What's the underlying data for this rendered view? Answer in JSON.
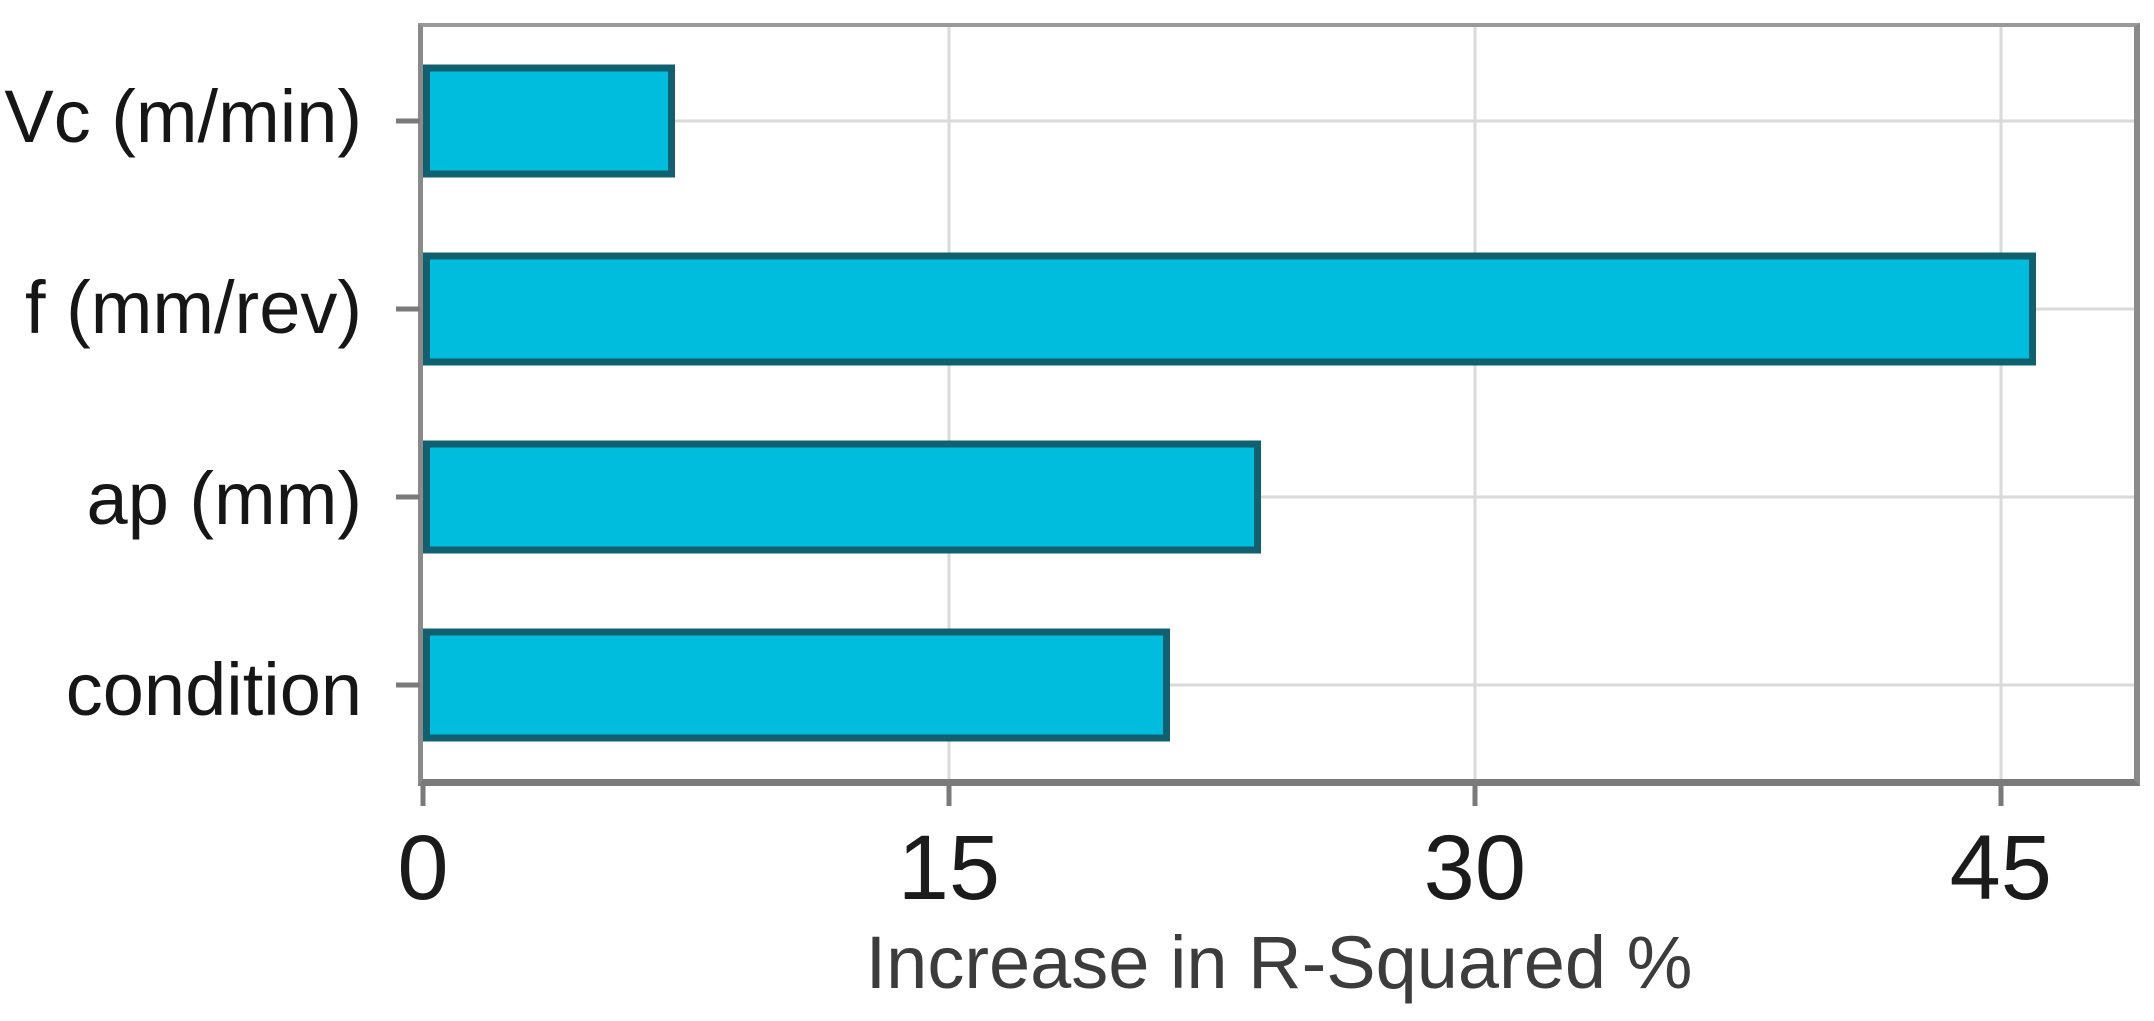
{
  "figure": {
    "background": "#ffffff"
  },
  "chart_data": {
    "type": "bar",
    "orientation": "horizontal",
    "title": "",
    "xlabel": "Increase in R-Squared %",
    "ylabel": "",
    "categories": [
      "Vc (m/min)",
      "f (mm/rev)",
      "ap (mm)",
      "condition"
    ],
    "values": [
      7.2,
      46.0,
      23.9,
      21.3
    ],
    "xlim": [
      0,
      48.8
    ],
    "xticks": [
      0,
      15,
      30,
      45
    ],
    "grid": "both",
    "legend_position": "none"
  },
  "colors": {
    "bar_fill": "#00bdde",
    "bar_border": "#10606f",
    "gridline": "#dadada",
    "plot_border": "#8a8a8a",
    "bottom_axis": "#7a7a7a",
    "tick_mark": "#7a7a7a",
    "tick_label_text": "#1b1b1b",
    "category_label_text": "#161616",
    "xlabel_text": "#3c3c3c"
  }
}
